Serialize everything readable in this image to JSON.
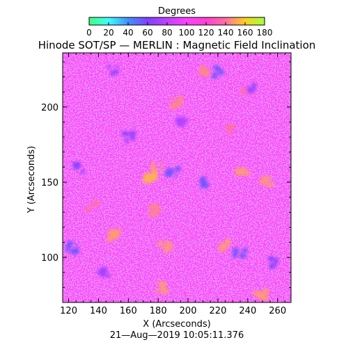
{
  "chart_data": {
    "type": "heatmap",
    "title": "Hinode SOT/SP — MERLIN : Magnetic Field Inclination",
    "colorbar": {
      "label": "Degrees",
      "range": [
        0,
        180
      ],
      "ticks": [
        "0",
        "20",
        "40",
        "60",
        "80",
        "100",
        "120",
        "140",
        "160",
        "180"
      ],
      "colors": [
        "#40ff80",
        "#40ffff",
        "#4090ff",
        "#8040ff",
        "#c040ff",
        "#ff40ff",
        "#ff40d0",
        "#ff70a0",
        "#ffd020",
        "#a0ff40"
      ]
    },
    "xlabel": "X (Arcseconds)",
    "ylabel": "Y (Arcseconds)",
    "xlim": [
      116,
      269
    ],
    "ylim": [
      70,
      236
    ],
    "xticks": [
      120,
      140,
      160,
      180,
      200,
      220,
      240,
      260
    ],
    "yticks": [
      100,
      150,
      200
    ],
    "timestamp": "21—Aug—2019 10:05:11.376",
    "field": {
      "dominant_value_deg": 100,
      "regions": [
        {
          "x": 180,
          "y": 161,
          "value": 150
        },
        {
          "x": 174,
          "y": 152,
          "value": 155
        },
        {
          "x": 236,
          "y": 156,
          "value": 150
        },
        {
          "x": 253,
          "y": 150,
          "value": 150
        },
        {
          "x": 193,
          "y": 203,
          "value": 145
        },
        {
          "x": 151,
          "y": 114,
          "value": 150
        },
        {
          "x": 177,
          "y": 131,
          "value": 145
        },
        {
          "x": 225,
          "y": 108,
          "value": 150
        },
        {
          "x": 185,
          "y": 107,
          "value": 150
        },
        {
          "x": 249,
          "y": 75,
          "value": 150
        },
        {
          "x": 183,
          "y": 80,
          "value": 150
        },
        {
          "x": 230,
          "y": 185,
          "value": 140
        },
        {
          "x": 212,
          "y": 225,
          "value": 145
        },
        {
          "x": 239,
          "y": 210,
          "value": 140
        },
        {
          "x": 135,
          "y": 135,
          "value": 140
        },
        {
          "x": 190,
          "y": 157,
          "value": 55
        },
        {
          "x": 210,
          "y": 150,
          "value": 55
        },
        {
          "x": 235,
          "y": 103,
          "value": 55
        },
        {
          "x": 122,
          "y": 107,
          "value": 55
        },
        {
          "x": 220,
          "y": 223,
          "value": 55
        },
        {
          "x": 127,
          "y": 160,
          "value": 60
        },
        {
          "x": 161,
          "y": 180,
          "value": 65
        },
        {
          "x": 150,
          "y": 225,
          "value": 70
        },
        {
          "x": 256,
          "y": 96,
          "value": 60
        },
        {
          "x": 196,
          "y": 190,
          "value": 75
        },
        {
          "x": 144,
          "y": 90,
          "value": 70
        },
        {
          "x": 242,
          "y": 212,
          "value": 65
        }
      ]
    }
  }
}
